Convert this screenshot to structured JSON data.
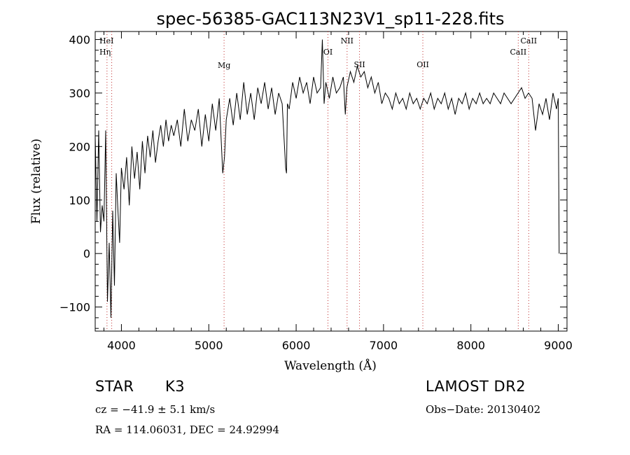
{
  "chart_data": {
    "type": "line",
    "title": "spec-56385-GAC113N23V1_sp11-228.fits",
    "xlabel": "Wavelength (Å)",
    "ylabel": "Flux (relative)",
    "xlim": [
      3700,
      9100
    ],
    "ylim": [
      -145,
      415
    ],
    "xticks": [
      4000,
      5000,
      6000,
      7000,
      8000,
      9000
    ],
    "yticks": [
      -100,
      0,
      100,
      200,
      300,
      400
    ],
    "xtick_labels": [
      "4000",
      "5000",
      "6000",
      "7000",
      "8000",
      "9000"
    ],
    "ytick_labels": [
      "−100",
      "0",
      "100",
      "200",
      "300",
      "400"
    ],
    "grid": false,
    "series": [
      {
        "x": [
          3700,
          3720,
          3740,
          3760,
          3780,
          3800,
          3820,
          3840,
          3860,
          3880,
          3900,
          3920,
          3940,
          3960,
          3980,
          4000,
          4030,
          4060,
          4090,
          4120,
          4150,
          4180,
          4210,
          4240,
          4270,
          4300,
          4330,
          4360,
          4390,
          4420,
          4450,
          4480,
          4510,
          4540,
          4570,
          4600,
          4640,
          4680,
          4720,
          4760,
          4800,
          4840,
          4880,
          4920,
          4960,
          5000,
          5040,
          5080,
          5120,
          5160,
          5180,
          5200,
          5240,
          5280,
          5320,
          5360,
          5400,
          5440,
          5480,
          5520,
          5560,
          5600,
          5640,
          5680,
          5720,
          5760,
          5800,
          5840,
          5880,
          5890,
          5900,
          5920,
          5960,
          6000,
          6040,
          6080,
          6120,
          6160,
          6200,
          6240,
          6280,
          6300,
          6320,
          6340,
          6380,
          6420,
          6460,
          6500,
          6540,
          6563,
          6580,
          6620,
          6660,
          6700,
          6740,
          6780,
          6820,
          6860,
          6900,
          6940,
          6980,
          7020,
          7060,
          7100,
          7140,
          7180,
          7220,
          7260,
          7300,
          7340,
          7380,
          7420,
          7460,
          7500,
          7540,
          7580,
          7620,
          7660,
          7700,
          7740,
          7780,
          7820,
          7860,
          7900,
          7940,
          7980,
          8020,
          8060,
          8100,
          8140,
          8180,
          8220,
          8260,
          8300,
          8340,
          8380,
          8420,
          8460,
          8500,
          8540,
          8580,
          8620,
          8660,
          8700,
          8740,
          8780,
          8820,
          8860,
          8900,
          8940,
          8980,
          9000,
          9010
        ],
        "y": [
          220,
          60,
          230,
          40,
          90,
          60,
          230,
          -90,
          20,
          -120,
          80,
          -60,
          150,
          80,
          20,
          160,
          120,
          180,
          90,
          200,
          140,
          190,
          120,
          210,
          150,
          220,
          180,
          230,
          170,
          210,
          240,
          200,
          250,
          210,
          240,
          220,
          250,
          200,
          270,
          210,
          250,
          230,
          270,
          200,
          260,
          210,
          280,
          230,
          290,
          150,
          180,
          250,
          290,
          240,
          300,
          250,
          320,
          260,
          300,
          250,
          310,
          280,
          320,
          270,
          310,
          260,
          300,
          280,
          160,
          150,
          280,
          270,
          320,
          290,
          330,
          300,
          320,
          280,
          330,
          300,
          310,
          400,
          280,
          320,
          290,
          330,
          300,
          310,
          330,
          260,
          310,
          340,
          320,
          350,
          330,
          340,
          310,
          330,
          300,
          320,
          280,
          300,
          290,
          270,
          300,
          280,
          290,
          270,
          300,
          280,
          290,
          270,
          290,
          280,
          300,
          270,
          290,
          280,
          300,
          270,
          290,
          260,
          290,
          280,
          300,
          270,
          290,
          280,
          300,
          280,
          290,
          280,
          300,
          290,
          280,
          300,
          290,
          280,
          290,
          300,
          310,
          290,
          300,
          290,
          230,
          280,
          260,
          290,
          250,
          300,
          270,
          290,
          0
        ]
      }
    ],
    "lines": [
      {
        "label": "HeI",
        "x": 3889
      },
      {
        "label": "Hη",
        "x": 3835
      },
      {
        "label": "Mg",
        "x": 5175
      },
      {
        "label": "OI",
        "x": 6364
      },
      {
        "label": "NII",
        "x": 6583
      },
      {
        "label": "SII",
        "x": 6725
      },
      {
        "label": "OII",
        "x": 7450
      },
      {
        "label": "CaII",
        "x": 8542
      },
      {
        "label": "CaII",
        "x": 8662
      }
    ]
  },
  "info": {
    "class": "STAR",
    "subclass": "K3",
    "survey": "LAMOST DR2",
    "cz": "cz = −41.9 ± 5.1 km/s",
    "obs_date": "Obs−Date: 20130402",
    "radec": "RA = 114.06031, DEC =  24.92994"
  }
}
